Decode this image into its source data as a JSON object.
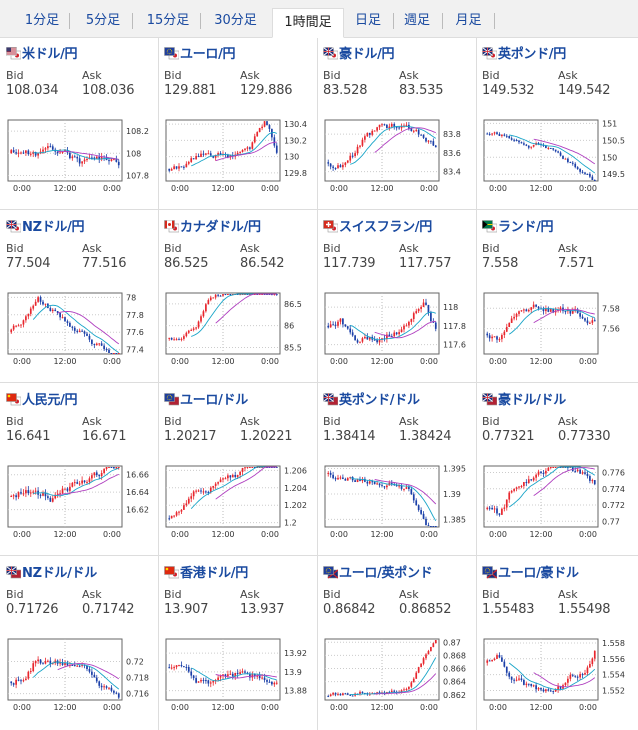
{
  "tabs": [
    {
      "label": "1分足",
      "active": false
    },
    {
      "label": "5分足",
      "active": false
    },
    {
      "label": "15分足",
      "active": false
    },
    {
      "label": "30分足",
      "active": false
    },
    {
      "label": "1時間足",
      "active": true
    },
    {
      "label": "日足",
      "active": false
    },
    {
      "label": "週足",
      "active": false
    },
    {
      "label": "月足",
      "active": false
    }
  ],
  "quote_labels": {
    "bid": "Bid",
    "ask": "Ask"
  },
  "colors": {
    "up": "#e8262d",
    "down": "#1a3fa8",
    "ma": "#b040c0",
    "ma2": "#19a5c8",
    "title": "#1a4aa0"
  },
  "pairs": [
    {
      "title": "米ドル/円",
      "flag": "us-jp-flag",
      "bid": "108.034",
      "ask": "108.036",
      "chart_data": {
        "type": "candlestick",
        "x_labels": [
          "0:00",
          "12:00",
          "0:00"
        ],
        "y_ticks": [
          "108.2",
          "108",
          "107.8"
        ],
        "ylim": [
          107.75,
          108.3
        ],
        "seed": 11,
        "start": 108.0,
        "trend": [
          0,
          0,
          0,
          -0.05,
          -0.1,
          0.05,
          0.02,
          0.0
        ],
        "vol": 0.07
      }
    },
    {
      "title": "ユーロ/円",
      "flag": "eu-jp-flag",
      "bid": "129.881",
      "ask": "129.886",
      "chart_data": {
        "type": "candlestick",
        "x_labels": [
          "0:00",
          "12:00",
          "0:00"
        ],
        "y_ticks": [
          "130.4",
          "130.2",
          "130",
          "129.8"
        ],
        "ylim": [
          129.7,
          130.45
        ],
        "seed": 22,
        "start": 129.85,
        "trend": [
          0.05,
          0.1,
          0.05,
          0,
          0,
          0.0,
          0.3,
          -0.4
        ],
        "vol": 0.08
      }
    },
    {
      "title": "豪ドル/円",
      "flag": "au-jp-flag",
      "bid": "83.528",
      "ask": "83.535",
      "chart_data": {
        "type": "candlestick",
        "x_labels": [
          "0:00",
          "12:00",
          "0:00"
        ],
        "y_ticks": [
          "83.8",
          "83.6",
          "83.4"
        ],
        "ylim": [
          83.3,
          83.95
        ],
        "seed": 33,
        "start": 83.5,
        "trend": [
          0,
          0.1,
          0.25,
          0.05,
          0,
          -0.1,
          -0.1,
          -0.1
        ],
        "vol": 0.07
      }
    },
    {
      "title": "英ポンド/円",
      "flag": "gb-jp-flag",
      "bid": "149.532",
      "ask": "149.542",
      "chart_data": {
        "type": "candlestick",
        "x_labels": [
          "0:00",
          "12:00",
          "0:00"
        ],
        "y_ticks": [
          "151",
          "150.5",
          "150",
          "149.5"
        ],
        "ylim": [
          149.3,
          151.1
        ],
        "seed": 44,
        "start": 150.7,
        "trend": [
          -0.05,
          -0.1,
          -0.05,
          0,
          -0.05,
          -0.3,
          -0.4,
          -0.3
        ],
        "vol": 0.12
      }
    },
    {
      "title": "NZドル/円",
      "flag": "nz-jp-flag",
      "bid": "77.504",
      "ask": "77.516",
      "chart_data": {
        "type": "candlestick",
        "x_labels": [
          "0:00",
          "12:00",
          "0:00"
        ],
        "y_ticks": [
          "78",
          "77.8",
          "77.6",
          "77.4"
        ],
        "ylim": [
          77.35,
          78.05
        ],
        "seed": 55,
        "start": 77.6,
        "trend": [
          0.1,
          0.3,
          -0.1,
          -0.1,
          -0.05,
          -0.1,
          -0.05,
          -0.1
        ],
        "vol": 0.07
      }
    },
    {
      "title": "カナダドル/円",
      "flag": "ca-jp-flag",
      "bid": "86.525",
      "ask": "86.542",
      "chart_data": {
        "type": "candlestick",
        "x_labels": [
          "0:00",
          "12:00",
          "0:00"
        ],
        "y_ticks": [
          "86.5",
          "86",
          "85.5"
        ],
        "ylim": [
          85.35,
          86.75
        ],
        "seed": 66,
        "start": 85.7,
        "trend": [
          -0.1,
          0.2,
          0.7,
          0.1,
          -0.05,
          0,
          0,
          0
        ],
        "vol": 0.1
      }
    },
    {
      "title": "スイスフラン/円",
      "flag": "ch-jp-flag",
      "bid": "117.739",
      "ask": "117.757",
      "chart_data": {
        "type": "candlestick",
        "x_labels": [
          "0:00",
          "12:00",
          "0:00"
        ],
        "y_ticks": [
          "118",
          "117.8",
          "117.6"
        ],
        "ylim": [
          117.5,
          118.15
        ],
        "seed": 77,
        "start": 117.8,
        "trend": [
          0.1,
          -0.2,
          0,
          0,
          0.05,
          0.05,
          0.15,
          -0.3
        ],
        "vol": 0.08
      }
    },
    {
      "title": "ランド/円",
      "flag": "za-jp-flag",
      "bid": "7.558",
      "ask": "7.571",
      "chart_data": {
        "type": "candlestick",
        "x_labels": [
          "0:00",
          "12:00",
          "0:00"
        ],
        "y_ticks": [
          "7.58",
          "7.56"
        ],
        "ylim": [
          7.535,
          7.595
        ],
        "seed": 88,
        "start": 7.555,
        "trend": [
          0,
          0.02,
          0.005,
          -0.003,
          -0.003,
          -0.004,
          -0.004,
          -0.003
        ],
        "vol": 0.007
      }
    },
    {
      "title": "人民元/円",
      "flag": "cn-jp-flag",
      "bid": "16.641",
      "ask": "16.671",
      "chart_data": {
        "type": "candlestick",
        "x_labels": [
          "0:00",
          "12:00",
          "0:00"
        ],
        "y_ticks": [
          "16.66",
          "16.64",
          "16.62"
        ],
        "ylim": [
          16.6,
          16.67
        ],
        "seed": 99,
        "start": 16.635,
        "trend": [
          0.005,
          -0.005,
          0,
          0.01,
          0,
          0.01,
          0.01,
          -0.005
        ],
        "vol": 0.01
      }
    },
    {
      "title": "ユーロ/ドル",
      "flag": "eu-us-flag",
      "bid": "1.20217",
      "ask": "1.20221",
      "chart_data": {
        "type": "candlestick",
        "x_labels": [
          "0:00",
          "12:00",
          "0:00"
        ],
        "y_ticks": [
          "1.206",
          "1.204",
          "1.202",
          "1.2"
        ],
        "ylim": [
          1.1995,
          1.2065
        ],
        "seed": 111,
        "start": 1.2005,
        "trend": [
          0,
          0.001,
          0.001,
          0.0008,
          0.0006,
          0.0008,
          0.0016,
          -0.003
        ],
        "vol": 0.0008
      }
    },
    {
      "title": "英ポンド/ドル",
      "flag": "gb-us-flag",
      "bid": "1.38414",
      "ask": "1.38424",
      "chart_data": {
        "type": "candlestick",
        "x_labels": [
          "0:00",
          "12:00",
          "0:00"
        ],
        "y_ticks": [
          "1.395",
          "1.39",
          "1.385"
        ],
        "ylim": [
          1.3835,
          1.3955
        ],
        "seed": 122,
        "start": 1.394,
        "trend": [
          -0.0005,
          -0.0005,
          0,
          0,
          0,
          -0.001,
          -0.004,
          -0.004
        ],
        "vol": 0.0012
      }
    },
    {
      "title": "豪ドル/ドル",
      "flag": "au-us-flag",
      "bid": "0.77321",
      "ask": "0.77330",
      "chart_data": {
        "type": "candlestick",
        "x_labels": [
          "0:00",
          "12:00",
          "0:00"
        ],
        "y_ticks": [
          "0.776",
          "0.774",
          "0.772",
          "0.77"
        ],
        "ylim": [
          0.7693,
          0.7768
        ],
        "seed": 133,
        "start": 0.7715,
        "trend": [
          -0.001,
          0.003,
          0.001,
          0.001,
          0.0005,
          -0.001,
          -0.001,
          -0.001
        ],
        "vol": 0.0009
      }
    },
    {
      "title": "NZドル/ドル",
      "flag": "nz-us-flag",
      "bid": "0.71726",
      "ask": "0.71742",
      "chart_data": {
        "type": "candlestick",
        "x_labels": [
          "0:00",
          "12:00",
          "0:00"
        ],
        "y_ticks": [
          "0.72",
          "0.718",
          "0.716"
        ],
        "ylim": [
          0.7152,
          0.7228
        ],
        "seed": 144,
        "start": 0.7175,
        "trend": [
          0.001,
          0.003,
          -0.0005,
          -0.0005,
          -0.001,
          -0.0005,
          -0.001,
          -0.002
        ],
        "vol": 0.0009
      }
    },
    {
      "title": "香港ドル/円",
      "flag": "hk-jp-flag",
      "bid": "13.907",
      "ask": "13.937",
      "chart_data": {
        "type": "candlestick",
        "x_labels": [
          "0:00",
          "12:00",
          "0:00"
        ],
        "y_ticks": [
          "13.92",
          "13.9",
          "13.88"
        ],
        "ylim": [
          13.87,
          13.935
        ],
        "seed": 155,
        "start": 13.905,
        "trend": [
          0.004,
          -0.006,
          0,
          -0.002,
          0,
          -0.002,
          0.003,
          -0.002
        ],
        "vol": 0.008
      }
    },
    {
      "title": "ユーロ/英ポンド",
      "flag": "eu-gb-flag",
      "bid": "0.86842",
      "ask": "0.86852",
      "chart_data": {
        "type": "candlestick",
        "x_labels": [
          "0:00",
          "12:00",
          "0:00"
        ],
        "y_ticks": [
          "0.87",
          "0.868",
          "0.866",
          "0.864",
          "0.862"
        ],
        "ylim": [
          0.8612,
          0.8705
        ],
        "seed": 166,
        "start": 0.8618,
        "trend": [
          0,
          0.0003,
          0.0006,
          0.0002,
          0.0002,
          0.0003,
          0.004,
          0.0025
        ],
        "vol": 0.0006
      }
    },
    {
      "title": "ユーロ/豪ドル",
      "flag": "eu-au-flag",
      "bid": "1.55483",
      "ask": "1.55498",
      "chart_data": {
        "type": "candlestick",
        "x_labels": [
          "0:00",
          "12:00",
          "0:00"
        ],
        "y_ticks": [
          "1.558",
          "1.556",
          "1.554",
          "1.552"
        ],
        "ylim": [
          1.5508,
          1.5585
        ],
        "seed": 177,
        "start": 1.5555,
        "trend": [
          0.0008,
          -0.002,
          -0.0015,
          -0.0005,
          0.0002,
          0.0008,
          0.0005,
          0.003
        ],
        "vol": 0.0009
      }
    }
  ]
}
